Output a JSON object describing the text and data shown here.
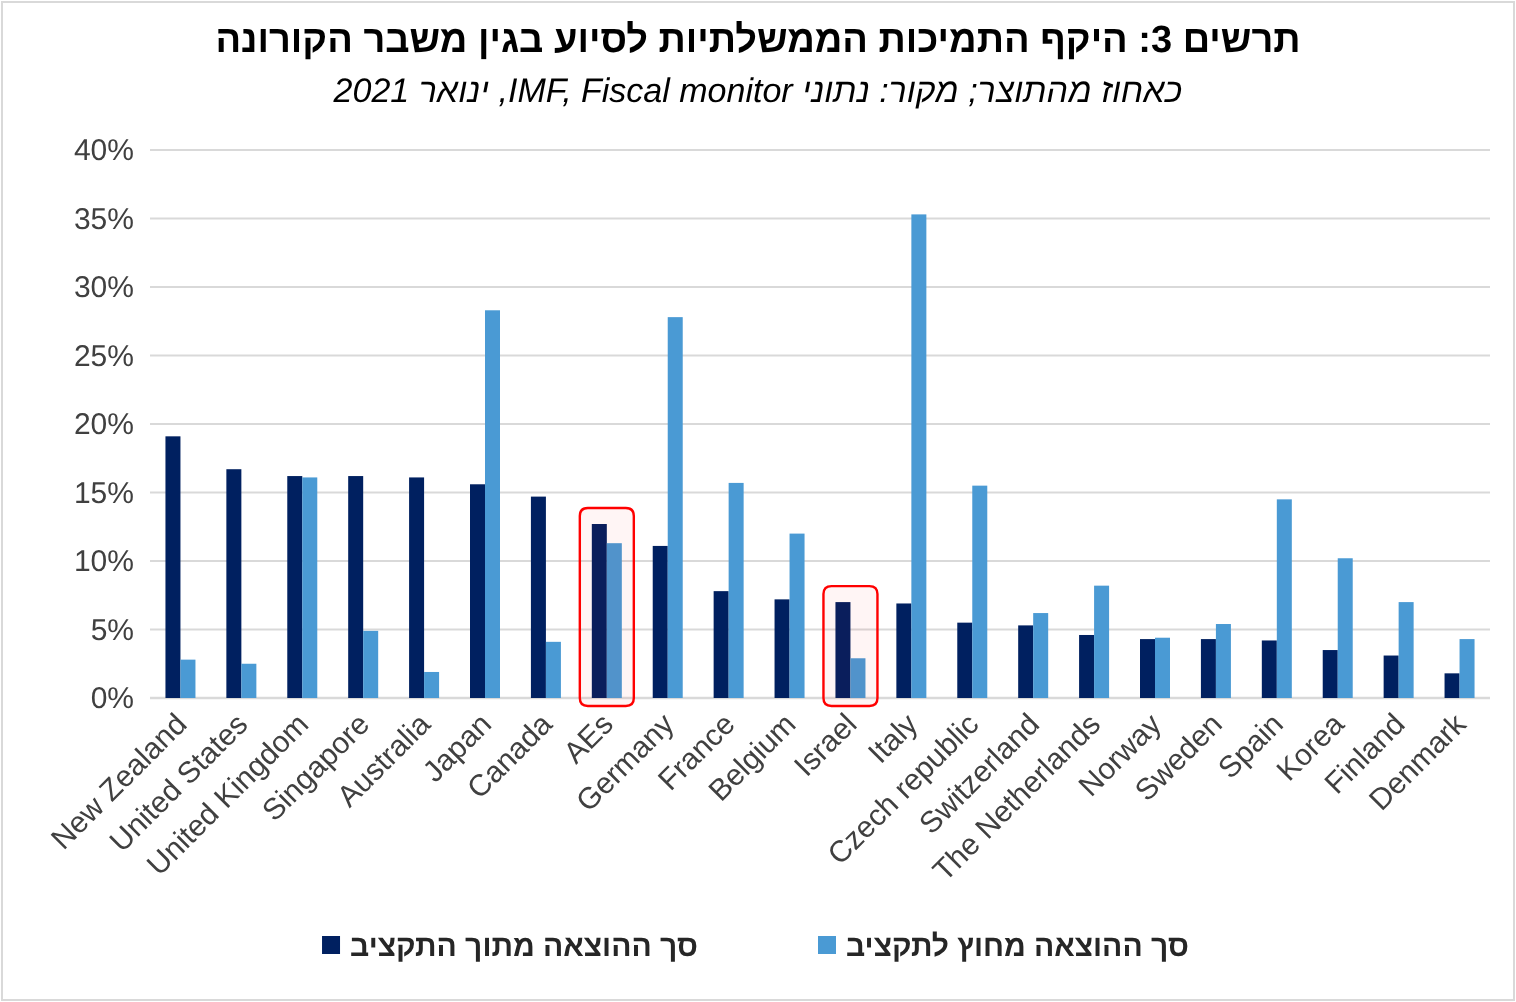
{
  "chart_data": {
    "type": "bar",
    "title": "תרשים 3: היקף התמיכות הממשלתיות לסיוע בגין משבר הקורונה",
    "subtitle": "כאחוז מהתוצר; מקור: נתוני IMF, Fiscal monitor, ינואר 2021",
    "categories": [
      "New Zealand",
      "United States",
      "United Kingdom",
      "Singapore",
      "Australia",
      "Japan",
      "Canada",
      "AEs",
      "Germany",
      "France",
      "Belgium",
      "Israel",
      "Italy",
      "Czech republic",
      "Switzerland",
      "The Netherlands",
      "Norway",
      "Sweden",
      "Spain",
      "Korea",
      "Finland",
      "Denmark"
    ],
    "series": [
      {
        "name": "סך ההוצאה מתוך התקציב",
        "color": "#002060",
        "values": [
          19.1,
          16.7,
          16.2,
          16.2,
          16.1,
          15.6,
          14.7,
          12.7,
          11.1,
          7.8,
          7.2,
          7.0,
          6.9,
          5.5,
          5.3,
          4.6,
          4.3,
          4.3,
          4.2,
          3.5,
          3.1,
          1.8
        ]
      },
      {
        "name": "סך ההוצאה מחוץ לתקציב",
        "color": "#4a9ad4",
        "values": [
          2.8,
          2.5,
          16.1,
          4.9,
          1.9,
          28.3,
          4.1,
          11.3,
          27.8,
          15.7,
          12.0,
          2.9,
          35.3,
          15.5,
          6.2,
          8.2,
          4.4,
          5.4,
          14.5,
          10.2,
          7.0,
          4.3
        ]
      }
    ],
    "ylim": [
      0,
      40
    ],
    "yticks": [
      {
        "value": 0,
        "label": "0%"
      },
      {
        "value": 5,
        "label": "5%"
      },
      {
        "value": 10,
        "label": "10%"
      },
      {
        "value": 15,
        "label": "15%"
      },
      {
        "value": 20,
        "label": "20%"
      },
      {
        "value": 25,
        "label": "25%"
      },
      {
        "value": 30,
        "label": "30%"
      },
      {
        "value": 35,
        "label": "35%"
      },
      {
        "value": 40,
        "label": "40%"
      }
    ],
    "grid": "y",
    "legend": "bottom",
    "bands": [
      {
        "axis": "x",
        "from": "AEs",
        "to": "AEs",
        "color": "#ff0000"
      },
      {
        "axis": "x",
        "from": "Israel",
        "to": "Israel",
        "color": "#ff0000"
      }
    ]
  }
}
